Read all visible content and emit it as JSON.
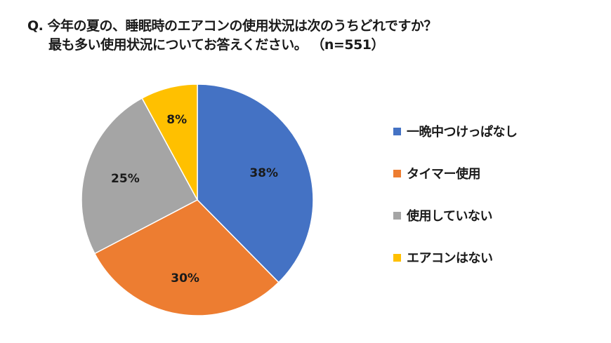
{
  "title": {
    "line1": "Q. 今年の夏の、睡眠時のエアコンの使用状況は次のうちどれですか？",
    "line2": "最も多い使用状況についてお答えください。 （n=551）"
  },
  "legend": {
    "items": [
      {
        "label": "一晩中つけっぱなし",
        "color": "#4472C4"
      },
      {
        "label": "タイマー使用",
        "color": "#ED7D31"
      },
      {
        "label": "使用していない",
        "color": "#A5A5A5"
      },
      {
        "label": "エアコンはない",
        "color": "#FFC000"
      }
    ]
  },
  "slices": [
    {
      "label": "38%"
    },
    {
      "label": "30%"
    },
    {
      "label": "25%"
    },
    {
      "label": "8%"
    }
  ],
  "chart_data": {
    "type": "pie",
    "title": "Q. 今年の夏の、睡眠時のエアコンの使用状況は次のうちどれですか？ 最も多い使用状況についてお答えください。 （n=551）",
    "categories": [
      "一晩中つけっぱなし",
      "タイマー使用",
      "使用していない",
      "エアコンはない"
    ],
    "values": [
      38,
      30,
      25,
      8
    ],
    "unit": "%",
    "colors": [
      "#4472C4",
      "#ED7D31",
      "#A5A5A5",
      "#FFC000"
    ],
    "n": 551,
    "legend_position": "right",
    "start_angle": "12 o'clock, clockwise"
  }
}
